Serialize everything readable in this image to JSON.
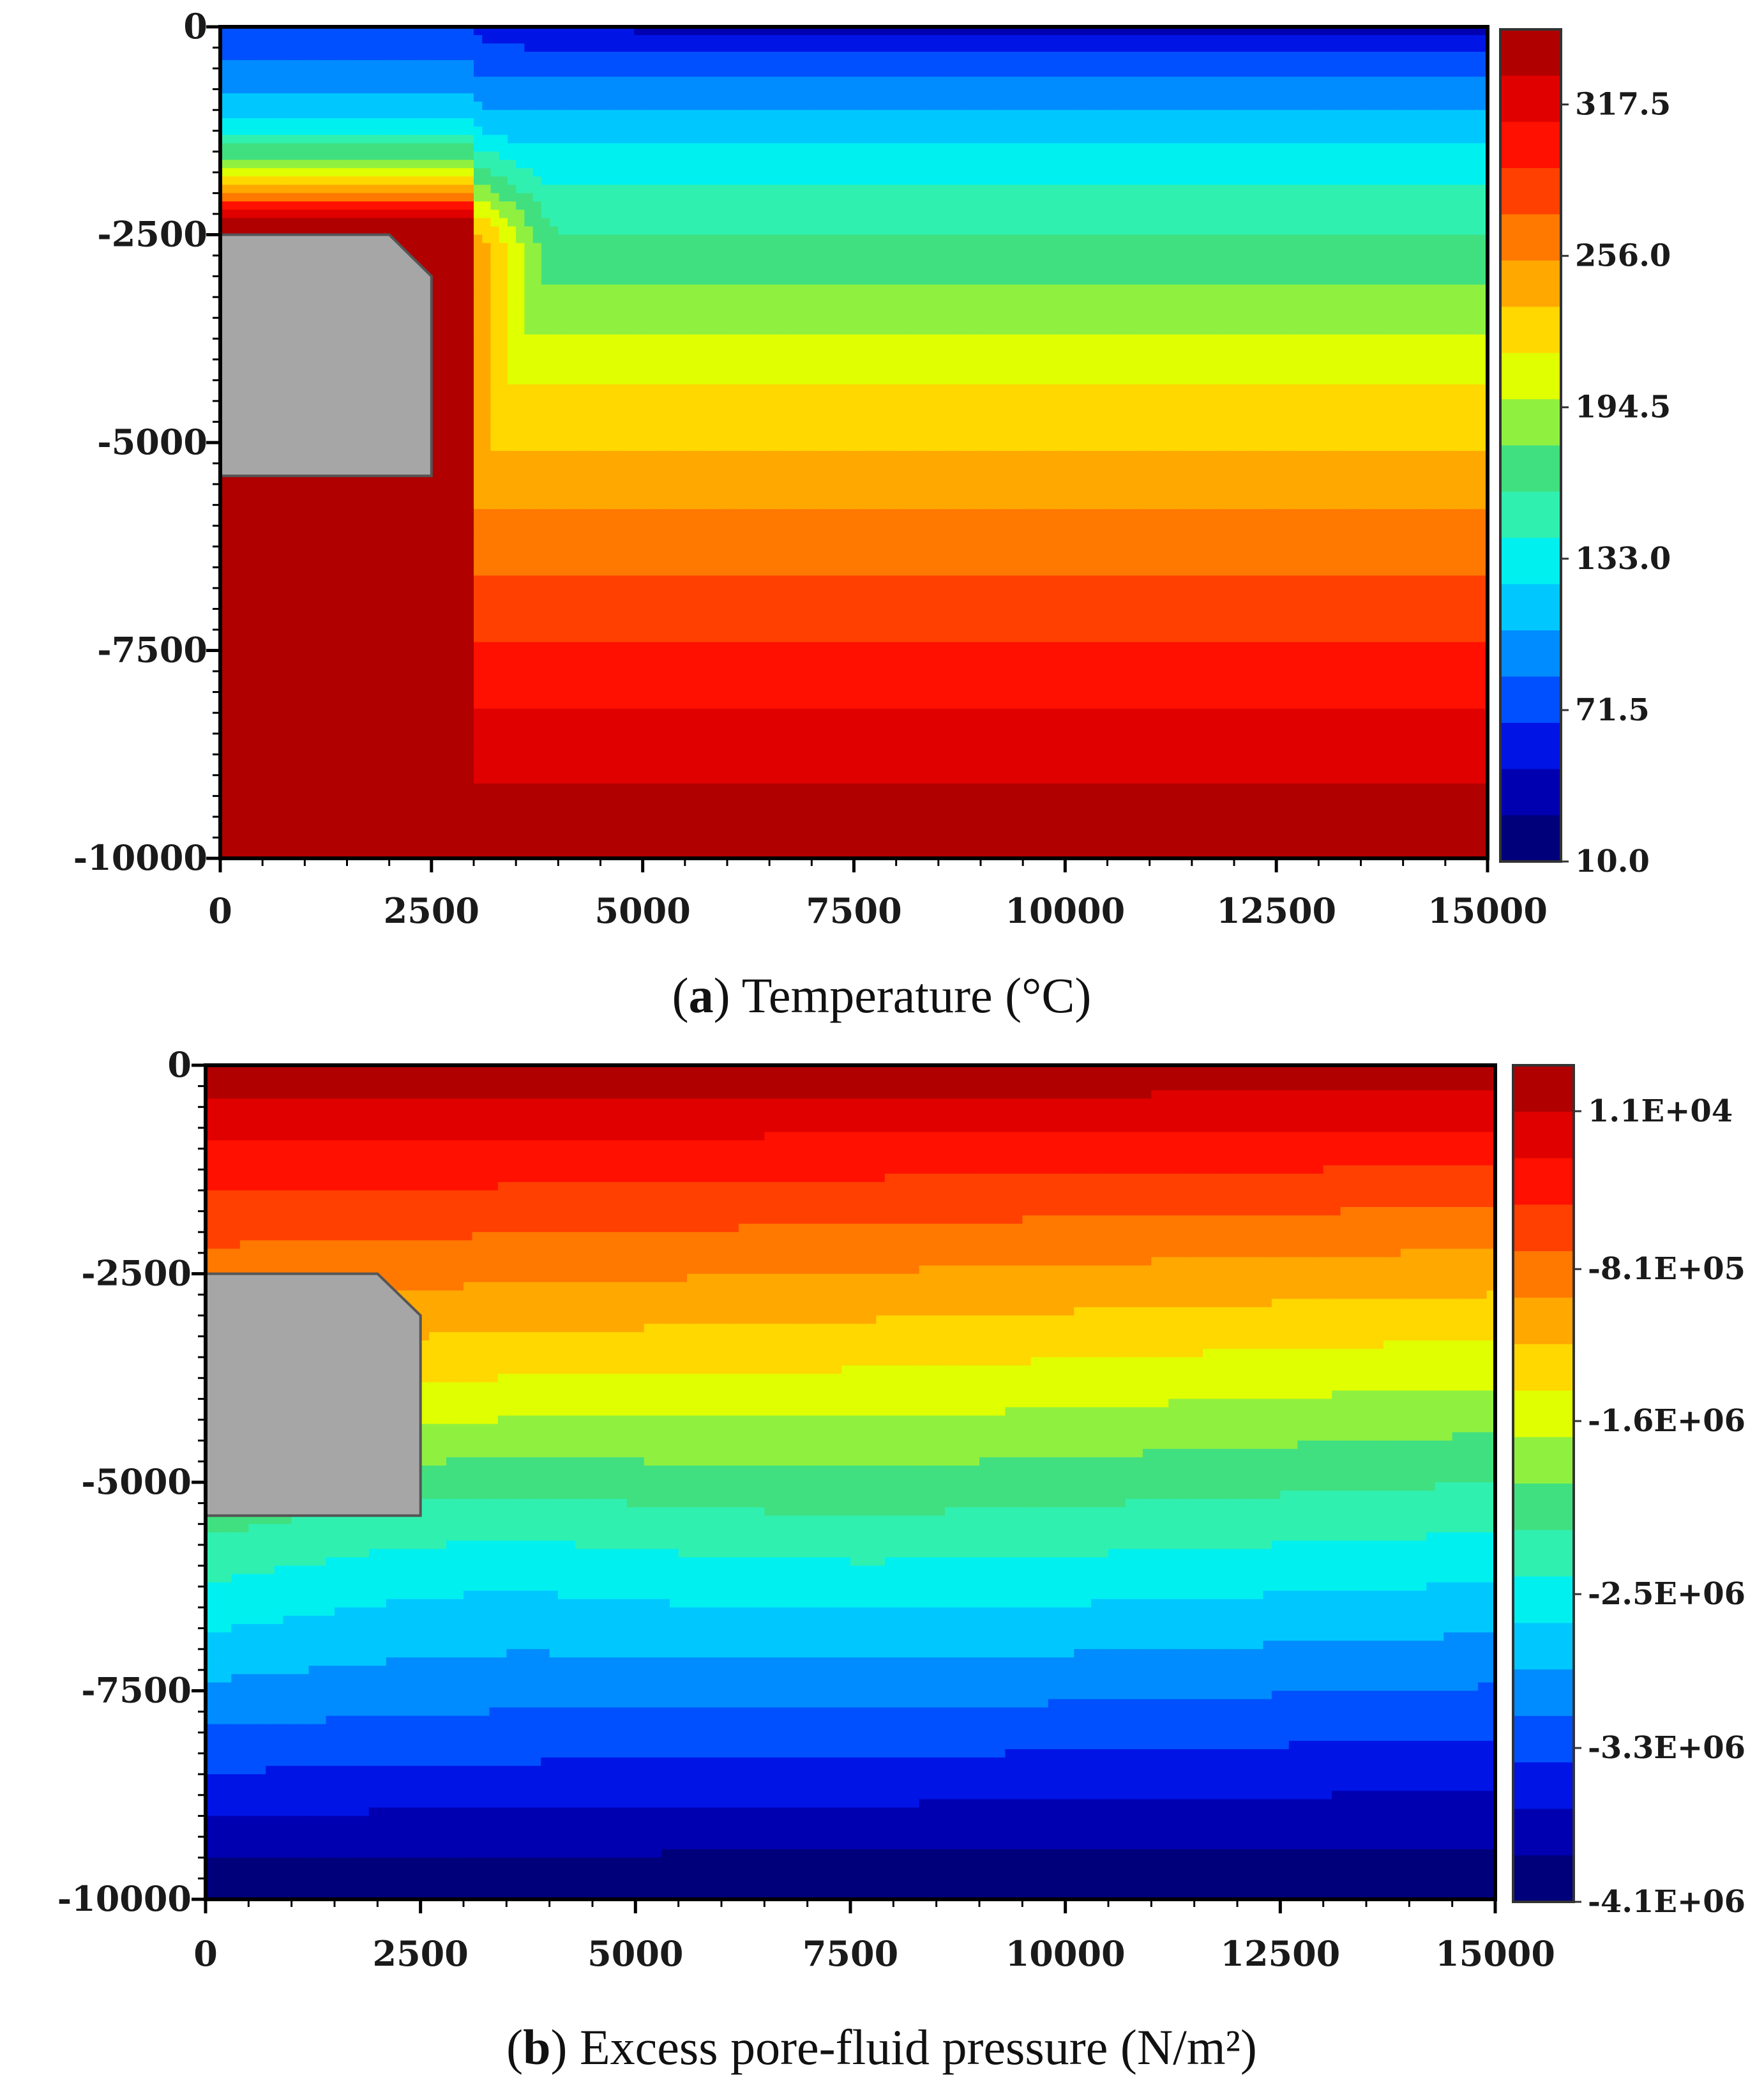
{
  "chart_data": [
    {
      "type": "contour",
      "id": "a",
      "caption_letter": "a",
      "caption_text": "Temperature (°C)",
      "x_range": [
        0,
        15000
      ],
      "y_range": [
        -10000,
        0
      ],
      "x_ticks": [
        "0",
        "2500",
        "5000",
        "7500",
        "10000",
        "12500",
        "15000"
      ],
      "y_ticks": [
        "0",
        "-2500",
        "-5000",
        "-7500",
        "-10000"
      ],
      "x_tick_values": [
        0,
        2500,
        5000,
        7500,
        10000,
        12500,
        15000
      ],
      "y_tick_values": [
        0,
        -2500,
        -5000,
        -7500,
        -10000
      ],
      "colorbar_labels": [
        "317.5",
        "256.0",
        "194.5",
        "133.0",
        "71.5",
        "10.0"
      ],
      "colorbar_values": [
        317.5,
        256.0,
        194.5,
        133.0,
        71.5,
        10.0
      ],
      "value_min": 10.0,
      "value_max": 348.0,
      "field": "temperature",
      "inclusion": {
        "shape": "chamfered-rectangle",
        "x": [
          0,
          2500
        ],
        "y": [
          -5400,
          -2500
        ]
      }
    },
    {
      "type": "contour",
      "id": "b",
      "caption_letter": "b",
      "caption_text": "Excess pore-fluid pressure (N/m²)",
      "x_range": [
        0,
        15000
      ],
      "y_range": [
        -10000,
        0
      ],
      "x_ticks": [
        "0",
        "2500",
        "5000",
        "7500",
        "10000",
        "12500",
        "15000"
      ],
      "y_ticks": [
        "0",
        "-2500",
        "-5000",
        "-7500",
        "-10000"
      ],
      "x_tick_values": [
        0,
        2500,
        5000,
        7500,
        10000,
        12500,
        15000
      ],
      "y_tick_values": [
        0,
        -2500,
        -5000,
        -7500,
        -10000
      ],
      "colorbar_labels": [
        "1.1E+04",
        "-8.1E+05",
        "-1.6E+06",
        "-2.5E+06",
        "-3.3E+06",
        "-4.1E+06"
      ],
      "colorbar_values": [
        11000,
        -810000,
        -1600000,
        -2500000,
        -3300000,
        -4100000
      ],
      "value_min": -4100000,
      "value_max": 250000,
      "field": "pressure",
      "inclusion": {
        "shape": "chamfered-rectangle",
        "x": [
          0,
          2500
        ],
        "y": [
          -5400,
          -2500
        ]
      }
    }
  ],
  "colormap": [
    "#00007a",
    "#0000b0",
    "#0014e6",
    "#0050ff",
    "#008cff",
    "#00c8ff",
    "#00f0f0",
    "#30f0b0",
    "#40e080",
    "#90f040",
    "#e0ff00",
    "#ffd800",
    "#ffa800",
    "#ff7800",
    "#ff4000",
    "#ff1000",
    "#e00000",
    "#b00000"
  ],
  "inclusion_color": "#a6a6a6"
}
